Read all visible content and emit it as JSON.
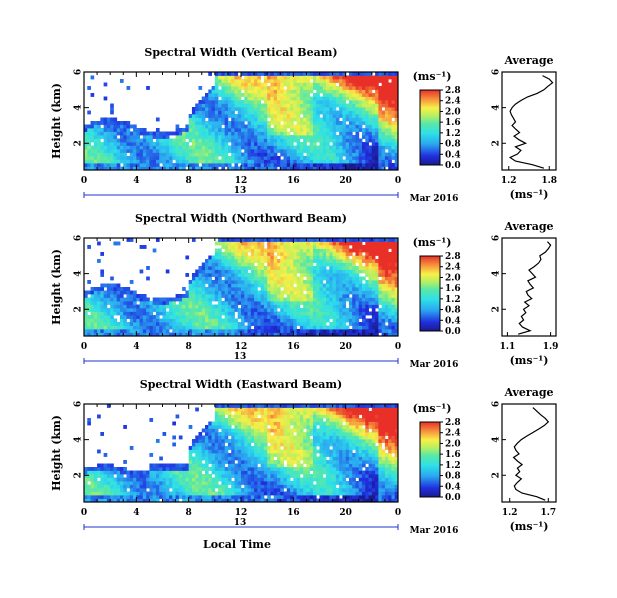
{
  "figure": {
    "date_label": "Mar 2016",
    "day_label": "13",
    "local_time_label": "Local Time",
    "height_label": "Height (km)",
    "unit_label": "(ms⁻¹)",
    "average_title": "Average"
  },
  "chart_data": [
    {
      "type": "heatmap",
      "title": "Spectral Width (Vertical Beam)",
      "xlabel": "",
      "ylabel": "Height (km)",
      "xlim": [
        0,
        24
      ],
      "ylim": [
        0.5,
        6
      ],
      "x_ticks": [
        "0",
        "4",
        "8",
        "12",
        "16",
        "20",
        "0"
      ],
      "y_ticks": [
        "2",
        "4",
        "6"
      ],
      "colorbar": {
        "label": "(ms⁻¹)",
        "ticks": [
          "0.0",
          "0.4",
          "0.8",
          "1.2",
          "1.6",
          "2.0",
          "2.4",
          "2.8"
        ],
        "range": [
          0.0,
          2.8
        ]
      },
      "average_profile": {
        "title": "Average",
        "xlabel": "(ms⁻¹)",
        "x_ticks": [
          "1.2",
          "1.8"
        ],
        "xlim": [
          1.1,
          1.9
        ],
        "y_ticks": [
          "2",
          "4",
          "6"
        ],
        "ylim": [
          0.5,
          6
        ],
        "height": [
          0.6,
          0.8,
          1.0,
          1.2,
          1.4,
          1.6,
          1.8,
          2.0,
          2.2,
          2.4,
          2.6,
          2.8,
          3.0,
          3.2,
          3.4,
          3.6,
          3.8,
          4.0,
          4.2,
          4.4,
          4.6,
          4.8,
          5.0,
          5.2,
          5.4,
          5.6,
          5.8
        ],
        "width": [
          1.72,
          1.55,
          1.3,
          1.22,
          1.33,
          1.38,
          1.3,
          1.45,
          1.35,
          1.28,
          1.36,
          1.3,
          1.25,
          1.3,
          1.27,
          1.24,
          1.22,
          1.25,
          1.3,
          1.38,
          1.48,
          1.62,
          1.72,
          1.78,
          1.85,
          1.8,
          1.7
        ]
      }
    },
    {
      "type": "heatmap",
      "title": "Spectral Width (Northward Beam)",
      "xlabel": "",
      "ylabel": "Height (km)",
      "xlim": [
        0,
        24
      ],
      "ylim": [
        0.5,
        6
      ],
      "x_ticks": [
        "0",
        "4",
        "8",
        "12",
        "16",
        "20",
        "0"
      ],
      "y_ticks": [
        "2",
        "4",
        "6"
      ],
      "colorbar": {
        "label": "(ms⁻¹)",
        "ticks": [
          "0.0",
          "0.4",
          "0.8",
          "1.2",
          "1.6",
          "2.0",
          "2.4",
          "2.8"
        ],
        "range": [
          0.0,
          2.8
        ]
      },
      "average_profile": {
        "title": "Average",
        "xlabel": "(ms⁻¹)",
        "x_ticks": [
          "1.1",
          "1.9"
        ],
        "xlim": [
          1.0,
          2.0
        ],
        "y_ticks": [
          "2",
          "4",
          "6"
        ],
        "ylim": [
          0.5,
          6
        ],
        "height": [
          0.6,
          0.8,
          1.0,
          1.2,
          1.4,
          1.6,
          1.8,
          2.0,
          2.2,
          2.4,
          2.6,
          2.8,
          3.0,
          3.2,
          3.4,
          3.6,
          3.8,
          4.0,
          4.2,
          4.4,
          4.6,
          4.8,
          5.0,
          5.2,
          5.4,
          5.6,
          5.8
        ],
        "width": [
          1.3,
          1.52,
          1.38,
          1.32,
          1.4,
          1.36,
          1.44,
          1.4,
          1.5,
          1.42,
          1.55,
          1.48,
          1.45,
          1.58,
          1.52,
          1.48,
          1.62,
          1.56,
          1.5,
          1.6,
          1.68,
          1.72,
          1.7,
          1.8,
          1.86,
          1.9,
          1.84
        ]
      }
    },
    {
      "type": "heatmap",
      "title": "Spectral Width (Eastward Beam)",
      "xlabel": "Local Time",
      "ylabel": "Height (km)",
      "xlim": [
        0,
        24
      ],
      "ylim": [
        0.5,
        6
      ],
      "x_ticks": [
        "0",
        "4",
        "8",
        "12",
        "16",
        "20",
        "0"
      ],
      "y_ticks": [
        "2",
        "4",
        "6"
      ],
      "colorbar": {
        "label": "(ms⁻¹)",
        "ticks": [
          "0.0",
          "0.4",
          "0.8",
          "1.2",
          "1.6",
          "2.0",
          "2.4",
          "2.8"
        ],
        "range": [
          0.0,
          2.8
        ]
      },
      "average_profile": {
        "title": "Average",
        "xlabel": "(ms⁻¹)",
        "x_ticks": [
          "1.2",
          "1.7"
        ],
        "xlim": [
          1.1,
          1.8
        ],
        "y_ticks": [
          "2",
          "4",
          "6"
        ],
        "ylim": [
          0.5,
          6
        ],
        "height": [
          0.6,
          0.8,
          1.0,
          1.2,
          1.4,
          1.6,
          1.8,
          2.0,
          2.2,
          2.4,
          2.6,
          2.8,
          3.0,
          3.2,
          3.4,
          3.6,
          3.8,
          4.0,
          4.2,
          4.4,
          4.6,
          4.8,
          5.0,
          5.2,
          5.4,
          5.6,
          5.8
        ],
        "width": [
          1.66,
          1.55,
          1.36,
          1.28,
          1.26,
          1.3,
          1.35,
          1.28,
          1.33,
          1.3,
          1.36,
          1.3,
          1.25,
          1.32,
          1.28,
          1.26,
          1.3,
          1.35,
          1.42,
          1.5,
          1.58,
          1.65,
          1.7,
          1.66,
          1.6,
          1.55,
          1.5
        ]
      }
    }
  ]
}
